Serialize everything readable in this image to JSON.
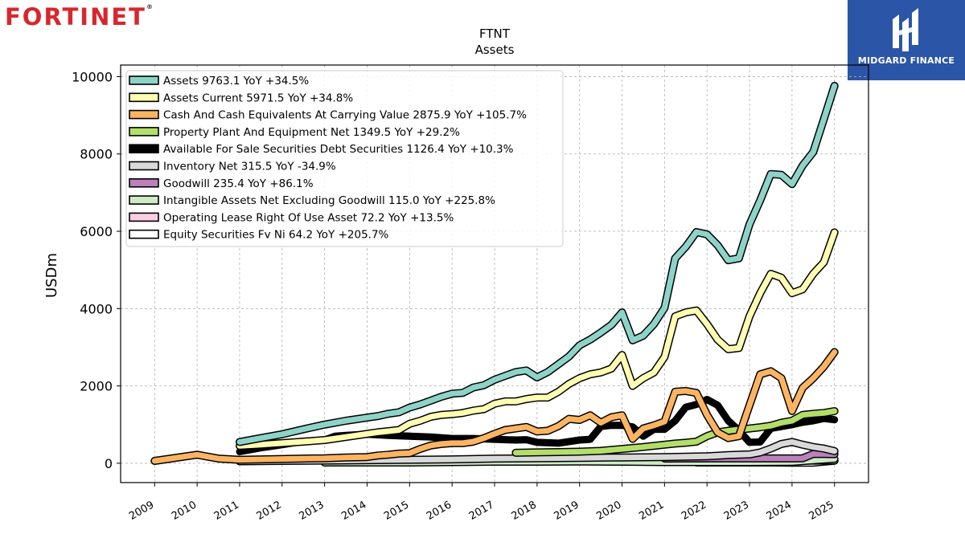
{
  "brand": {
    "logo_text": "FORTINET",
    "logo_reg": "®",
    "badge_text": "MIDGARD FINANCE",
    "badge_color": "#2b55a6",
    "logo_color": "#d8262d"
  },
  "chart_data": {
    "type": "line",
    "title": "FTNT",
    "subtitle": "Assets",
    "ylabel": "USDm",
    "xlabel": "",
    "xlim": [
      2008.2,
      2025.8
    ],
    "ylim": [
      -500,
      10300
    ],
    "yticks": [
      0,
      2000,
      4000,
      6000,
      8000,
      10000
    ],
    "xticks": [
      "2009",
      "2010",
      "2011",
      "2012",
      "2013",
      "2014",
      "2015",
      "2016",
      "2017",
      "2018",
      "2019",
      "2020",
      "2021",
      "2022",
      "2023",
      "2024",
      "2025"
    ],
    "grid": true,
    "legend_position": "top-left",
    "series": [
      {
        "name": "Assets",
        "legend": "Assets  9763.1 YoY +34.5%",
        "color": "#8dd3c7",
        "width": 7,
        "x": [
          2011.0,
          2011.5,
          2012.0,
          2012.5,
          2013.0,
          2013.5,
          2014.0,
          2014.25,
          2014.5,
          2014.75,
          2015.0,
          2015.25,
          2015.5,
          2015.75,
          2016.0,
          2016.25,
          2016.5,
          2016.75,
          2017.0,
          2017.25,
          2017.5,
          2017.75,
          2018.0,
          2018.25,
          2018.5,
          2018.75,
          2019.0,
          2019.25,
          2019.5,
          2019.75,
          2020.0,
          2020.25,
          2020.5,
          2020.75,
          2021.0,
          2021.25,
          2021.5,
          2021.75,
          2022.0,
          2022.25,
          2022.5,
          2022.75,
          2023.0,
          2023.25,
          2023.5,
          2023.75,
          2024.0,
          2024.25,
          2024.5,
          2024.75,
          2025.0
        ],
        "y": [
          550,
          650,
          750,
          880,
          1000,
          1100,
          1180,
          1220,
          1280,
          1320,
          1440,
          1520,
          1620,
          1720,
          1800,
          1820,
          1960,
          2020,
          2160,
          2260,
          2360,
          2400,
          2220,
          2360,
          2560,
          2760,
          3050,
          3200,
          3380,
          3580,
          3900,
          3180,
          3300,
          3600,
          4020,
          5300,
          5600,
          5980,
          5920,
          5640,
          5250,
          5300,
          6180,
          6800,
          7480,
          7460,
          7220,
          7700,
          8050,
          8900,
          9763
        ]
      },
      {
        "name": "Assets Current",
        "legend": "Assets Current  5971.5 YoY +34.8%",
        "color": "#ffffb3",
        "width": 7,
        "x": [
          2011.0,
          2011.5,
          2012.0,
          2012.5,
          2013.0,
          2013.5,
          2014.0,
          2014.25,
          2014.5,
          2014.75,
          2015.0,
          2015.25,
          2015.5,
          2015.75,
          2016.0,
          2016.25,
          2016.5,
          2016.75,
          2017.0,
          2017.25,
          2017.5,
          2017.75,
          2018.0,
          2018.25,
          2018.5,
          2018.75,
          2019.0,
          2019.25,
          2019.5,
          2019.75,
          2020.0,
          2020.25,
          2020.5,
          2020.75,
          2021.0,
          2021.25,
          2021.5,
          2021.75,
          2022.0,
          2022.25,
          2022.5,
          2022.75,
          2023.0,
          2023.25,
          2023.5,
          2023.75,
          2024.0,
          2024.25,
          2024.5,
          2024.75,
          2025.0
        ],
        "y": [
          450,
          480,
          520,
          560,
          600,
          680,
          760,
          800,
          830,
          860,
          1020,
          1100,
          1200,
          1250,
          1270,
          1300,
          1360,
          1400,
          1540,
          1600,
          1600,
          1660,
          1700,
          1700,
          1850,
          2050,
          2200,
          2300,
          2350,
          2450,
          2800,
          2000,
          2200,
          2350,
          2750,
          3800,
          3900,
          3950,
          3600,
          3200,
          2950,
          2980,
          3800,
          4400,
          4900,
          4800,
          4400,
          4500,
          4900,
          5200,
          5971
        ]
      },
      {
        "name": "Cash And Cash Equivalents At Carrying Value",
        "legend": "Cash And Cash Equivalents At Carrying Value  2875.9 YoY +105.7%",
        "color": "#fdb462",
        "width": 7,
        "x": [
          2009.0,
          2010.0,
          2010.5,
          2011.0,
          2011.5,
          2012.0,
          2012.5,
          2013.0,
          2013.5,
          2014.0,
          2014.25,
          2014.5,
          2014.75,
          2015.0,
          2015.25,
          2015.5,
          2015.75,
          2016.0,
          2016.25,
          2016.5,
          2016.75,
          2017.0,
          2017.25,
          2017.5,
          2017.75,
          2018.0,
          2018.25,
          2018.5,
          2018.75,
          2019.0,
          2019.25,
          2019.5,
          2019.75,
          2020.0,
          2020.25,
          2020.5,
          2020.75,
          2021.0,
          2021.25,
          2021.5,
          2021.75,
          2022.0,
          2022.25,
          2022.5,
          2022.75,
          2023.0,
          2023.25,
          2023.5,
          2023.75,
          2024.0,
          2024.25,
          2024.5,
          2024.75,
          2025.0
        ],
        "y": [
          60,
          220,
          120,
          90,
          100,
          110,
          120,
          130,
          150,
          160,
          200,
          220,
          250,
          260,
          370,
          460,
          500,
          520,
          520,
          560,
          650,
          760,
          860,
          900,
          940,
          820,
          840,
          960,
          1150,
          1120,
          1240,
          1050,
          1190,
          1240,
          630,
          900,
          980,
          1080,
          1850,
          1870,
          1820,
          1250,
          800,
          650,
          700,
          1500,
          2300,
          2380,
          2200,
          1350,
          1950,
          2200,
          2500,
          2875
        ]
      },
      {
        "name": "Property Plant And Equipment Net",
        "legend": "Property Plant And Equipment Net  1349.5 YoY +29.2%",
        "color": "#b3de69",
        "width": 7,
        "x": [
          2017.5,
          2018.0,
          2018.5,
          2019.0,
          2019.5,
          2020.0,
          2020.5,
          2021.0,
          2021.25,
          2021.5,
          2021.75,
          2022.0,
          2022.25,
          2022.5,
          2022.75,
          2023.0,
          2023.25,
          2023.5,
          2023.75,
          2024.0,
          2024.25,
          2024.5,
          2024.75,
          2025.0
        ],
        "y": [
          270,
          280,
          290,
          300,
          320,
          370,
          420,
          480,
          510,
          530,
          560,
          700,
          800,
          840,
          870,
          900,
          930,
          970,
          1050,
          1100,
          1250,
          1280,
          1300,
          1349
        ]
      },
      {
        "name": "Available For Sale Securities Debt Securities",
        "legend": "Available For Sale Securities Debt Securities  1126.4 YoY +10.3%",
        "color": "#000000",
        "width": 9,
        "x": [
          2011.0,
          2011.5,
          2012.0,
          2012.5,
          2013.0,
          2013.25,
          2013.5,
          2014.0,
          2014.5,
          2015.0,
          2015.5,
          2016.0,
          2016.5,
          2017.0,
          2017.5,
          2017.75,
          2018.0,
          2018.5,
          2019.0,
          2019.25,
          2019.5,
          2019.75,
          2020.0,
          2020.25,
          2020.5,
          2020.75,
          2021.0,
          2021.25,
          2021.5,
          2021.75,
          2022.0,
          2022.25,
          2022.5,
          2022.75,
          2023.0,
          2023.25,
          2023.5,
          2023.75,
          2024.0,
          2024.25,
          2024.5,
          2024.75,
          2025.0
        ],
        "y": [
          300,
          400,
          480,
          570,
          600,
          700,
          720,
          750,
          720,
          700,
          680,
          640,
          640,
          620,
          600,
          610,
          540,
          520,
          600,
          620,
          950,
          980,
          980,
          940,
          700,
          880,
          880,
          1100,
          1450,
          1520,
          1650,
          1500,
          1100,
          850,
          540,
          550,
          900,
          950,
          1000,
          1060,
          1100,
          1160,
          1126
        ]
      },
      {
        "name": "Inventory Net",
        "legend": "Inventory Net  315.5 YoY -34.9%",
        "color": "#d9d9d9",
        "width": 7,
        "x": [
          2011.0,
          2012.0,
          2013.0,
          2014.0,
          2015.0,
          2016.0,
          2017.0,
          2018.0,
          2019.0,
          2020.0,
          2021.0,
          2021.5,
          2022.0,
          2022.5,
          2023.0,
          2023.25,
          2023.5,
          2023.75,
          2024.0,
          2024.25,
          2024.5,
          2024.75,
          2025.0
        ],
        "y": [
          50,
          60,
          70,
          80,
          90,
          100,
          120,
          130,
          140,
          150,
          160,
          170,
          180,
          210,
          230,
          280,
          380,
          500,
          550,
          480,
          420,
          380,
          315
        ]
      },
      {
        "name": "Goodwill",
        "legend": "Goodwill  235.4 YoY +86.1%",
        "color": "#bc80bd",
        "width": 7,
        "x": [
          2021.0,
          2022.0,
          2023.0,
          2024.0,
          2024.25,
          2024.5,
          2024.75,
          2025.0
        ],
        "y": [
          120,
          125,
          125,
          125,
          130,
          240,
          240,
          235
        ]
      },
      {
        "name": "Intangible Assets Net Excluding Goodwill",
        "legend": "Intangible Assets Net Excluding Goodwill  115.0 YoY +225.8%",
        "color": "#ccebc5",
        "width": 7,
        "x": [
          2013.0,
          2014.0,
          2015.0,
          2016.0,
          2017.0,
          2018.0,
          2019.0,
          2020.0,
          2021.0,
          2022.0,
          2023.0,
          2024.0,
          2025.0
        ],
        "y": [
          20,
          20,
          20,
          30,
          40,
          40,
          45,
          40,
          30,
          30,
          30,
          35,
          115
        ]
      },
      {
        "name": "Operating Lease Right Of Use Asset",
        "legend": "Operating Lease Right Of Use Asset  72.2 YoY +13.5%",
        "color": "#fccde5",
        "width": 7,
        "x": [
          2019.25,
          2020.0,
          2021.0,
          2021.75,
          2022.0,
          2023.0,
          2024.0,
          2025.0
        ],
        "y": [
          50,
          55,
          60,
          65,
          65,
          65,
          65,
          72
        ]
      },
      {
        "name": "Equity Securities Fv Ni",
        "legend": "Equity Securities Fv Ni  64.2 YoY +205.7%",
        "color": "#ffffff",
        "width": 7,
        "x": [
          2021.75,
          2022.0,
          2022.5,
          2023.0,
          2023.5,
          2024.0,
          2024.5,
          2025.0
        ],
        "y": [
          20,
          20,
          20,
          20,
          20,
          15,
          15,
          64
        ]
      }
    ]
  }
}
